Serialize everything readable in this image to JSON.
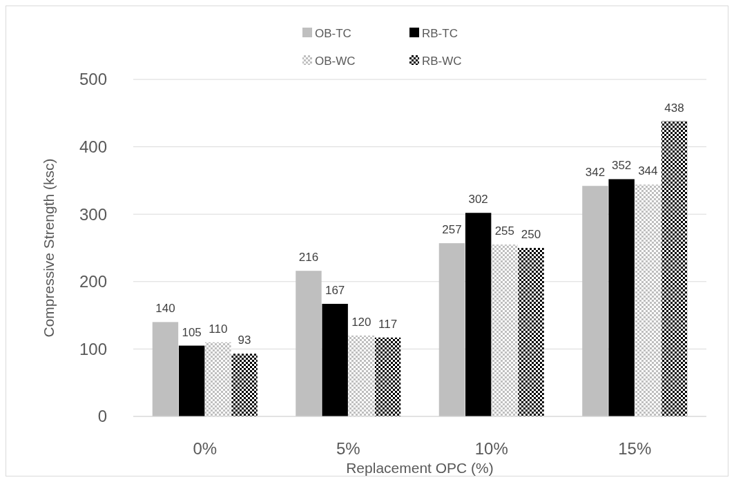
{
  "chart_data": {
    "type": "bar",
    "xlabel": "Replacement OPC (%)",
    "ylabel": "Compressive Strength (ksc)",
    "categories": [
      "0%",
      "5%",
      "10%",
      "15%"
    ],
    "series": [
      {
        "name": "OB-TC",
        "color": "#bfbfbf",
        "values": [
          140,
          216,
          257,
          342
        ]
      },
      {
        "name": "RB-TC",
        "color": "#000000",
        "values": [
          105,
          167,
          302,
          352
        ]
      },
      {
        "name": "OB-WC",
        "color": "#bfbfbf",
        "values": [
          110,
          120,
          255,
          344
        ]
      },
      {
        "name": "RB-WC",
        "color": "#000000",
        "values": [
          93,
          117,
          250,
          438
        ]
      }
    ],
    "ylim": [
      0,
      500
    ],
    "yticks": [
      0,
      100,
      200,
      300,
      400,
      500
    ],
    "grid": "y",
    "legend": "top",
    "data_labels": true
  }
}
